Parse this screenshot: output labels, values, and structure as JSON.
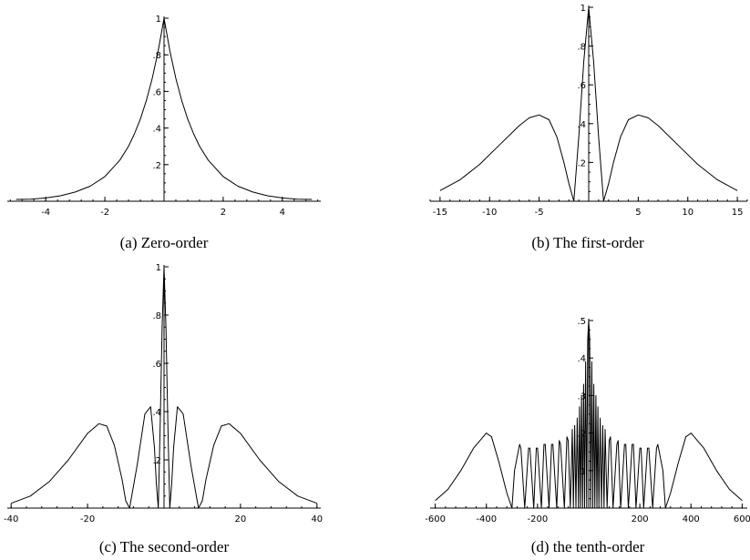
{
  "chart_data": [
    {
      "type": "line",
      "caption": "(a) Zero-order",
      "xlim": [
        -5.3,
        5.3
      ],
      "ylim": [
        0,
        1
      ],
      "x_ticks": [
        -4,
        -2,
        2,
        4
      ],
      "y_ticks": [
        0.2,
        0.4,
        0.6,
        0.8,
        1
      ],
      "grid": false,
      "series": [
        {
          "x": [
            -5,
            -4.5,
            -4,
            -3.5,
            -3,
            -2.5,
            -2,
            -1.5,
            -1.2,
            -1,
            -0.8,
            -0.6,
            -0.4,
            -0.2,
            0,
            0.2,
            0.4,
            0.6,
            0.8,
            1,
            1.2,
            1.5,
            2,
            2.5,
            3,
            3.5,
            4,
            4.5,
            5
          ],
          "y": [
            0.01,
            0.011,
            0.018,
            0.03,
            0.05,
            0.082,
            0.135,
            0.223,
            0.301,
            0.368,
            0.449,
            0.549,
            0.67,
            0.819,
            1,
            0.819,
            0.67,
            0.549,
            0.449,
            0.368,
            0.301,
            0.223,
            0.135,
            0.082,
            0.05,
            0.03,
            0.018,
            0.011,
            0.01
          ]
        }
      ]
    },
    {
      "type": "line",
      "caption": "(b) The first-order",
      "xlim": [
        -16,
        16
      ],
      "ylim": [
        0,
        1
      ],
      "x_ticks": [
        -15,
        -10,
        -5,
        5,
        10,
        15
      ],
      "y_ticks": [
        0.2,
        0.4,
        0.6,
        0.8,
        1
      ],
      "grid": false,
      "series": [
        {
          "x": [
            -15,
            -13,
            -11,
            -9,
            -7,
            -6,
            -5,
            -4,
            -3.2,
            -2.5,
            -2,
            -1.5,
            -1,
            -0.5,
            0,
            0.5,
            1,
            1.5,
            2,
            2.5,
            3.2,
            4,
            5,
            6,
            7,
            9,
            11,
            13,
            15
          ],
          "y": [
            0.055,
            0.11,
            0.19,
            0.29,
            0.39,
            0.43,
            0.445,
            0.42,
            0.33,
            0.2,
            0.09,
            0.0,
            0.33,
            0.72,
            1,
            0.72,
            0.33,
            0.0,
            0.09,
            0.2,
            0.33,
            0.42,
            0.445,
            0.43,
            0.39,
            0.29,
            0.19,
            0.11,
            0.055
          ]
        }
      ]
    },
    {
      "type": "line",
      "caption": "(c) The second-order",
      "xlim": [
        -41,
        41
      ],
      "ylim": [
        0,
        1
      ],
      "x_ticks": [
        -40,
        -20,
        20,
        40
      ],
      "y_ticks": [
        0.2,
        0.4,
        0.6,
        0.8,
        1
      ],
      "grid": false,
      "series": [
        {
          "x": [
            -40,
            -35,
            -30,
            -25,
            -20,
            -17,
            -15,
            -13,
            -11,
            -10,
            -9,
            -7,
            -5,
            -3.5,
            -2.5,
            -2,
            -1.5,
            -1,
            -0.5,
            0,
            0.5,
            1,
            1.5,
            2,
            2.5,
            3.5,
            5,
            7,
            9,
            10,
            11,
            13,
            15,
            17,
            20,
            25,
            30,
            35,
            40
          ],
          "y": [
            0.02,
            0.05,
            0.11,
            0.2,
            0.31,
            0.35,
            0.34,
            0.26,
            0.12,
            0.03,
            0.0,
            0.18,
            0.39,
            0.42,
            0.25,
            0.1,
            0.0,
            0.35,
            0.75,
            1,
            0.75,
            0.35,
            0.0,
            0.1,
            0.25,
            0.42,
            0.39,
            0.18,
            0.0,
            0.03,
            0.12,
            0.26,
            0.34,
            0.35,
            0.31,
            0.2,
            0.11,
            0.05,
            0.02
          ]
        }
      ]
    },
    {
      "type": "line",
      "caption": "(d) the tenth-order",
      "xlim": [
        -620,
        620
      ],
      "ylim": [
        0,
        0.5
      ],
      "x_ticks": [
        -600,
        -400,
        -200,
        200,
        400,
        600
      ],
      "y_ticks": [
        0.1,
        0.2,
        0.3,
        0.4,
        0.5
      ],
      "grid": false,
      "series": [
        {
          "x": [
            -600,
            -550,
            -500,
            -450,
            -400,
            -380,
            -350,
            -320,
            -300,
            -290,
            -270,
            -265,
            -250,
            -235,
            -230,
            -215,
            -205,
            -200,
            -185,
            -175,
            -170,
            -155,
            -145,
            -140,
            -125,
            -115,
            -110,
            -95,
            -85,
            -80,
            -72,
            -64,
            -60,
            -55,
            -50,
            -45,
            -40,
            -36,
            -32,
            -28,
            -24,
            -20,
            -16,
            -12,
            -8,
            -4,
            0,
            4,
            8,
            12,
            16,
            20,
            24,
            28,
            32,
            36,
            40,
            45,
            50,
            55,
            60,
            64,
            72,
            80,
            85,
            95,
            110,
            115,
            125,
            140,
            145,
            155,
            170,
            175,
            185,
            200,
            205,
            215,
            230,
            235,
            250,
            265,
            270,
            290,
            300,
            320,
            350,
            380,
            400,
            450,
            500,
            550,
            600
          ],
          "y": [
            0.02,
            0.05,
            0.1,
            0.16,
            0.2,
            0.19,
            0.12,
            0.04,
            0.0,
            0.1,
            0.17,
            0.16,
            0.0,
            0.16,
            0.16,
            0.0,
            0.16,
            0.16,
            0.0,
            0.17,
            0.17,
            0.0,
            0.17,
            0.17,
            0.0,
            0.18,
            0.17,
            0.0,
            0.19,
            0.18,
            0.0,
            0.21,
            0.0,
            0.22,
            0.0,
            0.24,
            0.0,
            0.27,
            0.0,
            0.3,
            0.0,
            0.33,
            0.0,
            0.39,
            0.0,
            0.45,
            0.5,
            0.45,
            0.0,
            0.39,
            0.0,
            0.33,
            0.0,
            0.3,
            0.0,
            0.27,
            0.0,
            0.24,
            0.0,
            0.22,
            0.0,
            0.21,
            0.0,
            0.18,
            0.19,
            0.0,
            0.17,
            0.18,
            0.0,
            0.17,
            0.17,
            0.0,
            0.17,
            0.17,
            0.0,
            0.16,
            0.16,
            0.0,
            0.16,
            0.16,
            0.0,
            0.16,
            0.17,
            0.1,
            0.0,
            0.04,
            0.12,
            0.19,
            0.2,
            0.16,
            0.1,
            0.05,
            0.02
          ]
        }
      ]
    }
  ]
}
